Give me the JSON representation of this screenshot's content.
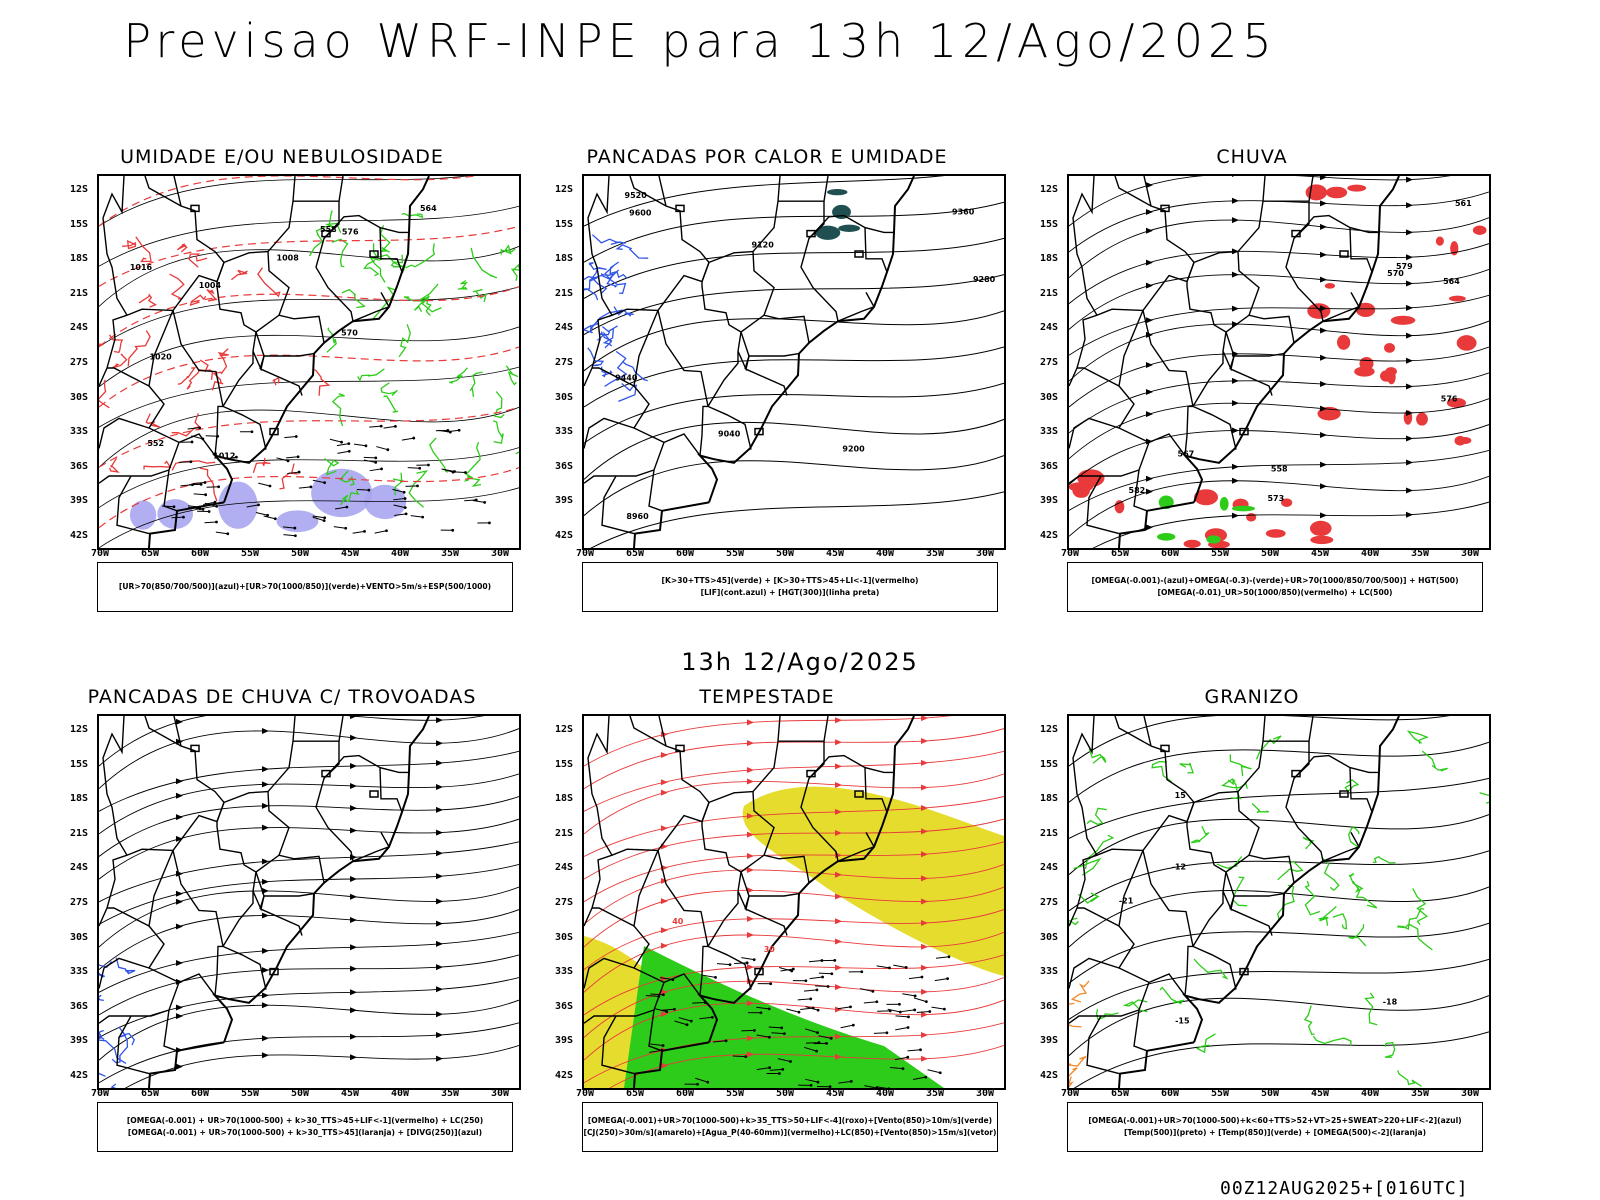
{
  "main_title": "Previsao WRF-INPE  para 13h 12/Ago/2025",
  "mid_time": "13h 12/Ago/2025",
  "footer_stamp": "00Z12AUG2025+[016UTC]",
  "lat_ticks": [
    "12S",
    "15S",
    "18S",
    "21S",
    "24S",
    "27S",
    "30S",
    "33S",
    "36S",
    "39S",
    "42S"
  ],
  "lon_ticks": [
    "70W",
    "65W",
    "60W",
    "55W",
    "50W",
    "45W",
    "40W",
    "35W",
    "30W"
  ],
  "colors": {
    "red": "#e83a3a",
    "green": "#2ecc1a",
    "blue": "#2f55e6",
    "yellow": "#e6dc2e",
    "lavender": "#a8a6f0",
    "teal": "#1f4f50",
    "orange": "#f08a2a"
  },
  "panels": [
    {
      "title": "UMIDADE E/OU NEBULOSIDADE",
      "legend": [
        "[UR>70(850/700/500)](azul)+[UR>70(1000/850)](verde)+VENTO>5m/s+ESP(500/1000)"
      ],
      "contour_labels": [
        "1016",
        "1012",
        "1020",
        "1008",
        "1004",
        "552",
        "564",
        "570",
        "576",
        "558"
      ]
    },
    {
      "title": "PANCADAS POR CALOR E UMIDADE",
      "legend": [
        "[K>30+TTS>45](verde) + [K>30+TTS>45+LI<-1](vermelho)",
        "[LIF](cont.azul) + [HGT(300)](linha preta)"
      ],
      "contour_labels": [
        "9600",
        "9520",
        "9440",
        "9360",
        "9280",
        "9200",
        "9120",
        "9040",
        "8960"
      ]
    },
    {
      "title": "CHUVA",
      "legend": [
        "[OMEGA(-0.001)-(azul)+OMEGA(-0.3)-(verde)+UR>70(1000/850/700/500)] + HGT(500)",
        "[OMEGA(-0.01)_UR>50(1000/850)(vermelho) + LC(500)"
      ],
      "contour_labels": [
        "582",
        "579",
        "576",
        "573",
        "570",
        "567",
        "564",
        "561",
        "558"
      ]
    },
    {
      "title": "PANCADAS DE CHUVA C/ TROVOADAS",
      "legend": [
        "[OMEGA(-0.001) + UR>70(1000-500) + k>30_TTS>45+LIF<-1](vermelho) + LC(250)",
        "[OMEGA(-0.001) + UR>70(1000-500) + k>30_TTS>45](laranja) + [DIVG(250)](azul)"
      ],
      "contour_labels": []
    },
    {
      "title": "TEMPESTADE",
      "legend": [
        "[OMEGA(-0.001)+UR>70(1000-500)+k>35_TTS>50+LIF<-4](roxo)+[Vento(850)>10m/s](verde)",
        "[CJ(250)>30m/s](amarelo)+[Agua_P(40-60mm)](vermelho)+LC(850)+[Vento(850)>15m/s](vetor)"
      ],
      "contour_labels": [
        "40",
        "30"
      ]
    },
    {
      "title": "GRANIZO",
      "legend": [
        "[OMEGA(-0.001)+UR>70(1000-500)+k<60+TTS>52+VT>25+SWEAT>220+LIF<-2](azul)",
        "[Temp(500)](preto) + [Temp(850)](verde) + [OMEGA(500)<-2](laranja)"
      ],
      "contour_labels": [
        "-12",
        "-15",
        "-18",
        "-21",
        "15"
      ]
    }
  ]
}
